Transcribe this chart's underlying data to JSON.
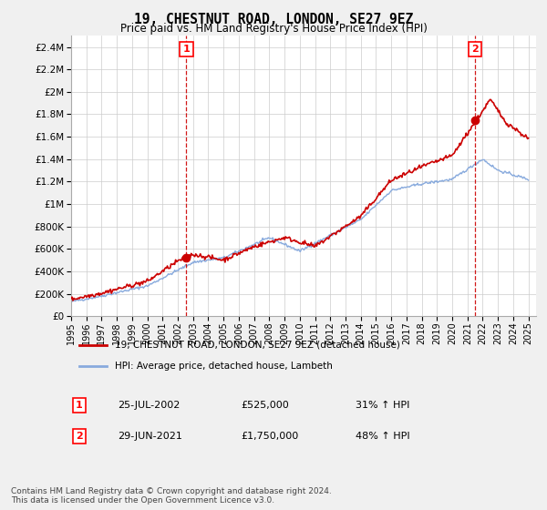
{
  "title": "19, CHESTNUT ROAD, LONDON, SE27 9EZ",
  "subtitle": "Price paid vs. HM Land Registry's House Price Index (HPI)",
  "ylim": [
    0,
    2500000
  ],
  "xlim_start": 1995.0,
  "xlim_end": 2025.5,
  "sale1_x": 2002.56,
  "sale1_y": 525000,
  "sale1_label": "1",
  "sale1_date": "25-JUL-2002",
  "sale1_price": "£525,000",
  "sale1_hpi": "31% ↑ HPI",
  "sale2_x": 2021.49,
  "sale2_y": 1750000,
  "sale2_label": "2",
  "sale2_date": "29-JUN-2021",
  "sale2_price": "£1,750,000",
  "sale2_hpi": "48% ↑ HPI",
  "line_color_property": "#cc0000",
  "line_color_hpi": "#88aadd",
  "legend_property": "19, CHESTNUT ROAD, LONDON, SE27 9EZ (detached house)",
  "legend_hpi": "HPI: Average price, detached house, Lambeth",
  "footnote": "Contains HM Land Registry data © Crown copyright and database right 2024.\nThis data is licensed under the Open Government Licence v3.0.",
  "background_color": "#f0f0f0",
  "plot_background": "#ffffff"
}
